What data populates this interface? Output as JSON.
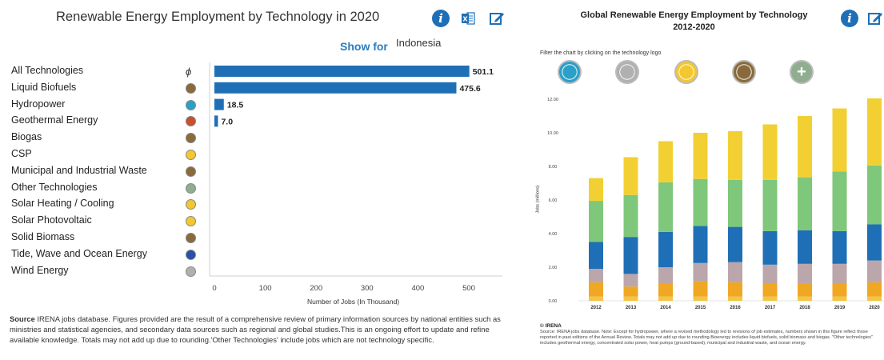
{
  "left": {
    "title": "Renewable Energy Employment by Technology in 2020",
    "show_for_label": "Show for",
    "country": "Indonesia",
    "icons": [
      "info-icon",
      "excel-icon",
      "edit-icon"
    ],
    "note_label": "Source",
    "note_text": " IRENA jobs database. Figures provided are the result of a comprehensive review of primary information sources by national entities such as ministries and statistical agencies, and secondary data sources such as regional and global studies.This is an ongoing effort to update and refine available knowledge. Totals may not add up due to rounding.'Other Technologies' include jobs which are not technology specific."
  },
  "right": {
    "title_line1": "Global Renewable Energy Employment by Technology",
    "title_line2": "2012-2020",
    "filter_text": "Filter the chart by clicking on the technology logo",
    "icons": [
      "info-icon",
      "edit-icon"
    ],
    "credit": "© IRENA",
    "note_text": "Source: IRENA jobs database. Note: Except for hydropower, where a revised methodology led to revisions of job estimates, numbers shown in this figure reflect those reported in past editions of the Annual Review. Totals may not add up due to rounding.Bioenergy includes liquid biofuels, solid biomass and biogas. \"Other technologies\" includes geothermal energy, concentrated solar power, heat pumps (ground-based), municipal and industrial waste, and ocean energy."
  },
  "colors": {
    "bar_blue": "#1f6fb7",
    "wind": "#b9b9b9",
    "solar_pv": "#f2c72f",
    "bioenergy": "#7fc77a",
    "hydropower": "#1f6fb7",
    "other": "#bba6ab",
    "solar_heating": "#f0a824",
    "accent_link": "#2a7cc2"
  },
  "chart_data": [
    {
      "type": "bar",
      "orientation": "horizontal",
      "title": "Renewable Energy Employment by Technology in 2020",
      "xlabel": "Number of Jobs (In Thousand)",
      "xlim": [
        0,
        500
      ],
      "xticks": [
        "0",
        "100",
        "200",
        "300",
        "400",
        "500"
      ],
      "categories": [
        "All Technologies",
        "Liquid Biofuels",
        "Hydropower",
        "Geothermal Energy",
        "Biogas",
        "CSP",
        "Municipal and Industrial Waste",
        "Other Technologies",
        "Solar Heating / Cooling",
        "Solar Photovoltaic",
        "Solid Biomass",
        "Tide, Wave and Ocean Energy",
        "Wind Energy"
      ],
      "values": [
        501.1,
        475.6,
        18.5,
        7.0,
        null,
        null,
        null,
        null,
        null,
        null,
        null,
        null,
        null
      ],
      "value_labels": [
        "501.1",
        "475.6",
        "18.5",
        "7.0",
        "",
        "",
        "",
        "",
        "",
        "",
        "",
        "",
        ""
      ],
      "logo_colors": [
        "#ffffff",
        "#8a6a3a",
        "#2aa0c8",
        "#c8502a",
        "#8a6a3a",
        "#f2c72f",
        "#8a6a3a",
        "#8fae8f",
        "#f2c72f",
        "#f2c72f",
        "#8a6a3a",
        "#2a50a8",
        "#b0b0b0"
      ],
      "grid": false
    },
    {
      "type": "bar",
      "stacked": true,
      "title": "Global Renewable Energy Employment by Technology 2012-2020",
      "ylabel": "Jobs (millions)",
      "ylim": [
        0,
        12
      ],
      "yticks": [
        "0.00",
        "2.00",
        "4.00",
        "6.00",
        "8.00",
        "10.00",
        "12.00"
      ],
      "categories": [
        "2012",
        "2013",
        "2014",
        "2015",
        "2016",
        "2017",
        "2018",
        "2019",
        "2020"
      ],
      "series": [
        {
          "values": [
            0.25,
            0.25,
            0.25,
            0.25,
            0.25,
            0.25,
            0.25,
            0.25,
            0.25
          ],
          "color": "#f4c542"
        },
        {
          "values": [
            0.85,
            0.6,
            0.75,
            0.9,
            0.85,
            0.75,
            0.8,
            0.75,
            0.85
          ],
          "color": "#f0a824"
        },
        {
          "values": [
            0.8,
            0.75,
            1.0,
            1.1,
            1.2,
            1.15,
            1.15,
            1.2,
            1.3
          ],
          "color": "#bba6ab"
        },
        {
          "values": [
            1.6,
            2.2,
            2.1,
            2.2,
            2.1,
            2.0,
            2.0,
            1.95,
            2.15
          ],
          "color": "#1f6fb7"
        },
        {
          "values": [
            2.45,
            2.5,
            2.95,
            2.8,
            2.8,
            3.05,
            3.15,
            3.55,
            3.5
          ],
          "color": "#7fc77a"
        },
        {
          "values": [
            1.35,
            2.25,
            2.45,
            2.75,
            2.9,
            3.3,
            3.65,
            3.75,
            4.0
          ],
          "color": "#f2d033"
        }
      ],
      "logos": [
        {
          "name": "hydropower-logo",
          "color": "#2aa0c8"
        },
        {
          "name": "wind-logo",
          "color": "#b0b0b0"
        },
        {
          "name": "solar-logo",
          "color": "#f2c72f"
        },
        {
          "name": "bioenergy-logo",
          "color": "#8a6a3a"
        },
        {
          "name": "other-logo",
          "color": "#8fae8f"
        }
      ],
      "grid": false
    }
  ]
}
